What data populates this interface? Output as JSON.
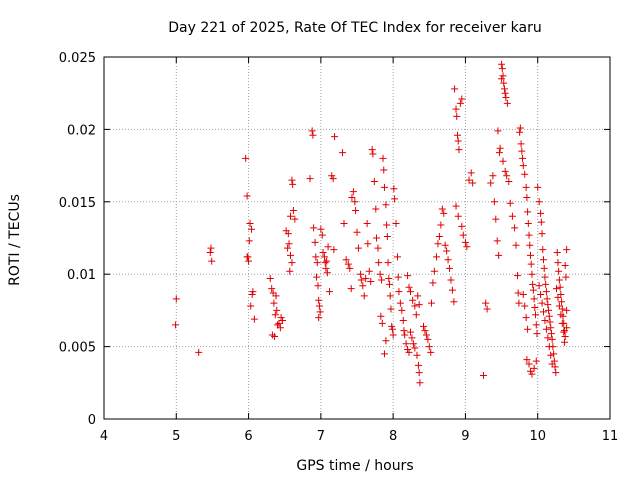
{
  "chart_data": {
    "type": "scatter",
    "title": "Day 221 of 2025, Rate Of TEC Index for receiver karu",
    "xlabel": "GPS time / hours",
    "ylabel": "ROTI / TECUs",
    "xlim": [
      4,
      11
    ],
    "ylim": [
      0,
      0.025
    ],
    "x_ticks": [
      "4",
      "5",
      "6",
      "7",
      "8",
      "9",
      "10",
      "11"
    ],
    "y_ticks": [
      "0",
      "0.005",
      "0.01",
      "0.015",
      "0.02",
      "0.025"
    ],
    "grid": true,
    "marker": "+",
    "color": "#e00000",
    "series": [
      {
        "points": [
          [
            5.0,
            0.0083
          ],
          [
            4.99,
            0.0065
          ],
          [
            5.31,
            0.0046
          ],
          [
            5.48,
            0.0118
          ],
          [
            5.49,
            0.0109
          ],
          [
            5.47,
            0.0115
          ],
          [
            5.96,
            0.018
          ],
          [
            5.98,
            0.0154
          ],
          [
            5.98,
            0.0112
          ],
          [
            6.0,
            0.0109
          ],
          [
            6.02,
            0.0135
          ],
          [
            6.04,
            0.0131
          ],
          [
            6.01,
            0.0123
          ],
          [
            5.99,
            0.0112
          ],
          [
            6.06,
            0.0088
          ],
          [
            6.03,
            0.0078
          ],
          [
            6.08,
            0.0069
          ],
          [
            6.05,
            0.0086
          ],
          [
            6.3,
            0.0097
          ],
          [
            6.32,
            0.009
          ],
          [
            6.35,
            0.008
          ],
          [
            6.37,
            0.0072
          ],
          [
            6.4,
            0.0065
          ],
          [
            6.42,
            0.0066
          ],
          [
            6.44,
            0.0063
          ],
          [
            6.33,
            0.0058
          ],
          [
            6.36,
            0.0057
          ],
          [
            6.39,
            0.0075
          ],
          [
            6.45,
            0.007
          ],
          [
            6.47,
            0.0068
          ],
          [
            6.38,
            0.0085
          ],
          [
            6.34,
            0.0087
          ],
          [
            6.52,
            0.013
          ],
          [
            6.55,
            0.0128
          ],
          [
            6.58,
            0.014
          ],
          [
            6.6,
            0.0165
          ],
          [
            6.61,
            0.0162
          ],
          [
            6.62,
            0.0144
          ],
          [
            6.56,
            0.0121
          ],
          [
            6.58,
            0.0113
          ],
          [
            6.6,
            0.0108
          ],
          [
            6.57,
            0.0102
          ],
          [
            6.54,
            0.0118
          ],
          [
            6.64,
            0.0138
          ],
          [
            6.85,
            0.0166
          ],
          [
            6.88,
            0.0199
          ],
          [
            6.89,
            0.0196
          ],
          [
            6.9,
            0.0132
          ],
          [
            6.92,
            0.0122
          ],
          [
            6.93,
            0.0112
          ],
          [
            6.95,
            0.0108
          ],
          [
            6.94,
            0.0098
          ],
          [
            6.96,
            0.0092
          ],
          [
            6.97,
            0.0082
          ],
          [
            6.98,
            0.0078
          ],
          [
            6.99,
            0.0074
          ],
          [
            6.97,
            0.007
          ],
          [
            7.0,
            0.0131
          ],
          [
            7.02,
            0.0127
          ],
          [
            7.03,
            0.0115
          ],
          [
            7.05,
            0.0112
          ],
          [
            7.06,
            0.0108
          ],
          [
            7.07,
            0.0104
          ],
          [
            7.08,
            0.0109
          ],
          [
            7.09,
            0.0101
          ],
          [
            7.1,
            0.0119
          ],
          [
            7.12,
            0.0088
          ],
          [
            7.15,
            0.0168
          ],
          [
            7.17,
            0.0166
          ],
          [
            7.19,
            0.0195
          ],
          [
            7.18,
            0.0117
          ],
          [
            7.3,
            0.0184
          ],
          [
            7.32,
            0.0135
          ],
          [
            7.35,
            0.011
          ],
          [
            7.38,
            0.0107
          ],
          [
            7.4,
            0.0104
          ],
          [
            7.42,
            0.009
          ],
          [
            7.43,
            0.0153
          ],
          [
            7.45,
            0.0157
          ],
          [
            7.47,
            0.015
          ],
          [
            7.48,
            0.0144
          ],
          [
            7.5,
            0.0129
          ],
          [
            7.52,
            0.0118
          ],
          [
            7.55,
            0.01
          ],
          [
            7.56,
            0.0096
          ],
          [
            7.58,
            0.0092
          ],
          [
            7.6,
            0.0085
          ],
          [
            7.62,
            0.0097
          ],
          [
            7.64,
            0.0135
          ],
          [
            7.65,
            0.0121
          ],
          [
            7.67,
            0.0102
          ],
          [
            7.69,
            0.0095
          ],
          [
            7.71,
            0.0186
          ],
          [
            7.72,
            0.0183
          ],
          [
            7.74,
            0.0164
          ],
          [
            7.76,
            0.0145
          ],
          [
            7.77,
            0.0125
          ],
          [
            7.79,
            0.0118
          ],
          [
            7.8,
            0.0108
          ],
          [
            7.82,
            0.01
          ],
          [
            7.84,
            0.0096
          ],
          [
            7.86,
            0.018
          ],
          [
            7.87,
            0.0172
          ],
          [
            7.88,
            0.016
          ],
          [
            7.9,
            0.0148
          ],
          [
            7.91,
            0.0134
          ],
          [
            7.92,
            0.0126
          ],
          [
            7.93,
            0.0108
          ],
          [
            7.94,
            0.0097
          ],
          [
            7.95,
            0.0093
          ],
          [
            7.96,
            0.0085
          ],
          [
            7.97,
            0.0076
          ],
          [
            7.98,
            0.0064
          ],
          [
            7.99,
            0.0062
          ],
          [
            8.0,
            0.0058
          ],
          [
            7.83,
            0.0071
          ],
          [
            7.85,
            0.0066
          ],
          [
            7.88,
            0.0045
          ],
          [
            7.9,
            0.0054
          ],
          [
            8.01,
            0.0159
          ],
          [
            8.02,
            0.0152
          ],
          [
            8.04,
            0.0135
          ],
          [
            8.06,
            0.0112
          ],
          [
            8.07,
            0.0098
          ],
          [
            8.08,
            0.0088
          ],
          [
            8.1,
            0.008
          ],
          [
            8.12,
            0.0075
          ],
          [
            8.14,
            0.0068
          ],
          [
            8.15,
            0.0061
          ],
          [
            8.16,
            0.0058
          ],
          [
            8.18,
            0.0052
          ],
          [
            8.2,
            0.0048
          ],
          [
            8.22,
            0.0046
          ],
          [
            8.24,
            0.006
          ],
          [
            8.26,
            0.0056
          ],
          [
            8.28,
            0.0052
          ],
          [
            8.3,
            0.0049
          ],
          [
            8.33,
            0.0044
          ],
          [
            8.35,
            0.0037
          ],
          [
            8.36,
            0.0032
          ],
          [
            8.37,
            0.0025
          ],
          [
            8.2,
            0.0099
          ],
          [
            8.22,
            0.0091
          ],
          [
            8.24,
            0.0088
          ],
          [
            8.27,
            0.0082
          ],
          [
            8.3,
            0.0078
          ],
          [
            8.32,
            0.0072
          ],
          [
            8.34,
            0.0085
          ],
          [
            8.36,
            0.0079
          ],
          [
            8.42,
            0.0064
          ],
          [
            8.44,
            0.0061
          ],
          [
            8.46,
            0.0058
          ],
          [
            8.48,
            0.0055
          ],
          [
            8.5,
            0.005
          ],
          [
            8.52,
            0.0046
          ],
          [
            8.53,
            0.008
          ],
          [
            8.55,
            0.0094
          ],
          [
            8.57,
            0.0102
          ],
          [
            8.6,
            0.0112
          ],
          [
            8.62,
            0.0121
          ],
          [
            8.64,
            0.0126
          ],
          [
            8.66,
            0.0134
          ],
          [
            8.68,
            0.0145
          ],
          [
            8.7,
            0.0142
          ],
          [
            8.72,
            0.012
          ],
          [
            8.74,
            0.0116
          ],
          [
            8.76,
            0.011
          ],
          [
            8.78,
            0.0104
          ],
          [
            8.8,
            0.0096
          ],
          [
            8.82,
            0.0089
          ],
          [
            8.84,
            0.0081
          ],
          [
            8.85,
            0.0228
          ],
          [
            8.87,
            0.0214
          ],
          [
            8.88,
            0.0209
          ],
          [
            8.89,
            0.0196
          ],
          [
            8.9,
            0.0192
          ],
          [
            8.91,
            0.0186
          ],
          [
            8.93,
            0.0218
          ],
          [
            8.95,
            0.0221
          ],
          [
            8.87,
            0.0147
          ],
          [
            8.9,
            0.014
          ],
          [
            8.95,
            0.0133
          ],
          [
            8.97,
            0.0127
          ],
          [
            9.0,
            0.0122
          ],
          [
            9.02,
            0.0119
          ],
          [
            9.05,
            0.0165
          ],
          [
            9.08,
            0.017
          ],
          [
            9.1,
            0.0163
          ],
          [
            9.25,
            0.003
          ],
          [
            9.28,
            0.008
          ],
          [
            9.3,
            0.0076
          ],
          [
            9.35,
            0.0163
          ],
          [
            9.38,
            0.0168
          ],
          [
            9.4,
            0.015
          ],
          [
            9.42,
            0.0138
          ],
          [
            9.44,
            0.0123
          ],
          [
            9.46,
            0.0113
          ],
          [
            9.45,
            0.0199
          ],
          [
            9.47,
            0.0184
          ],
          [
            9.48,
            0.0187
          ],
          [
            9.5,
            0.0245
          ],
          [
            9.51,
            0.0242
          ],
          [
            9.52,
            0.0237
          ],
          [
            9.53,
            0.0232
          ],
          [
            9.54,
            0.0228
          ],
          [
            9.55,
            0.0225
          ],
          [
            9.56,
            0.0222
          ],
          [
            9.58,
            0.0218
          ],
          [
            9.5,
            0.0235
          ],
          [
            9.52,
            0.0178
          ],
          [
            9.55,
            0.0171
          ],
          [
            9.57,
            0.0168
          ],
          [
            9.6,
            0.0164
          ],
          [
            9.62,
            0.0149
          ],
          [
            9.65,
            0.014
          ],
          [
            9.68,
            0.0132
          ],
          [
            9.7,
            0.012
          ],
          [
            9.72,
            0.0099
          ],
          [
            9.73,
            0.0087
          ],
          [
            9.74,
            0.008
          ],
          [
            9.75,
            0.0198
          ],
          [
            9.76,
            0.0201
          ],
          [
            9.77,
            0.019
          ],
          [
            9.78,
            0.0185
          ],
          [
            9.79,
            0.018
          ],
          [
            9.8,
            0.0175
          ],
          [
            9.82,
            0.0169
          ],
          [
            9.84,
            0.016
          ],
          [
            9.85,
            0.0153
          ],
          [
            9.86,
            0.0143
          ],
          [
            9.87,
            0.0135
          ],
          [
            9.88,
            0.0127
          ],
          [
            9.89,
            0.012
          ],
          [
            9.9,
            0.0113
          ],
          [
            9.91,
            0.0107
          ],
          [
            9.92,
            0.01
          ],
          [
            9.93,
            0.0093
          ],
          [
            9.94,
            0.0089
          ],
          [
            9.95,
            0.0083
          ],
          [
            9.96,
            0.0077
          ],
          [
            9.97,
            0.0072
          ],
          [
            9.98,
            0.0065
          ],
          [
            9.99,
            0.0059
          ],
          [
            9.8,
            0.0086
          ],
          [
            9.82,
            0.0078
          ],
          [
            9.84,
            0.007
          ],
          [
            9.86,
            0.0062
          ],
          [
            9.85,
            0.0041
          ],
          [
            9.88,
            0.0038
          ],
          [
            9.9,
            0.0033
          ],
          [
            9.92,
            0.0031
          ],
          [
            9.95,
            0.0035
          ],
          [
            9.98,
            0.004
          ],
          [
            10.0,
            0.016
          ],
          [
            10.02,
            0.015
          ],
          [
            10.04,
            0.0142
          ],
          [
            10.05,
            0.0136
          ],
          [
            10.06,
            0.0128
          ],
          [
            10.07,
            0.0117
          ],
          [
            10.08,
            0.011
          ],
          [
            10.09,
            0.0104
          ],
          [
            10.1,
            0.0098
          ],
          [
            10.11,
            0.0093
          ],
          [
            10.12,
            0.0088
          ],
          [
            10.13,
            0.0083
          ],
          [
            10.14,
            0.0079
          ],
          [
            10.15,
            0.0075
          ],
          [
            10.16,
            0.0071
          ],
          [
            10.17,
            0.0067
          ],
          [
            10.18,
            0.0063
          ],
          [
            10.19,
            0.0059
          ],
          [
            10.2,
            0.0055
          ],
          [
            10.21,
            0.005
          ],
          [
            10.22,
            0.0045
          ],
          [
            10.23,
            0.004
          ],
          [
            10.24,
            0.0036
          ],
          [
            10.25,
            0.0032
          ],
          [
            10.02,
            0.0092
          ],
          [
            10.04,
            0.0086
          ],
          [
            10.06,
            0.008
          ],
          [
            10.08,
            0.0074
          ],
          [
            10.1,
            0.0068
          ],
          [
            10.12,
            0.0062
          ],
          [
            10.14,
            0.0056
          ],
          [
            10.16,
            0.005
          ],
          [
            10.18,
            0.0044
          ],
          [
            10.2,
            0.0038
          ],
          [
            10.27,
            0.0115
          ],
          [
            10.28,
            0.0108
          ],
          [
            10.29,
            0.0102
          ],
          [
            10.3,
            0.0096
          ],
          [
            10.31,
            0.0091
          ],
          [
            10.32,
            0.0086
          ],
          [
            10.33,
            0.0081
          ],
          [
            10.34,
            0.0076
          ],
          [
            10.35,
            0.0071
          ],
          [
            10.36,
            0.0066
          ],
          [
            10.37,
            0.0061
          ],
          [
            10.38,
            0.0057
          ],
          [
            10.26,
            0.009
          ],
          [
            10.28,
            0.0084
          ],
          [
            10.3,
            0.0078
          ],
          [
            10.32,
            0.0072
          ],
          [
            10.34,
            0.0066
          ],
          [
            10.36,
            0.006
          ],
          [
            10.38,
            0.0106
          ],
          [
            10.4,
            0.0117
          ],
          [
            10.39,
            0.0098
          ],
          [
            10.4,
            0.0075
          ],
          [
            10.4,
            0.0063
          ],
          [
            10.37,
            0.0053
          ]
        ]
      }
    ]
  }
}
